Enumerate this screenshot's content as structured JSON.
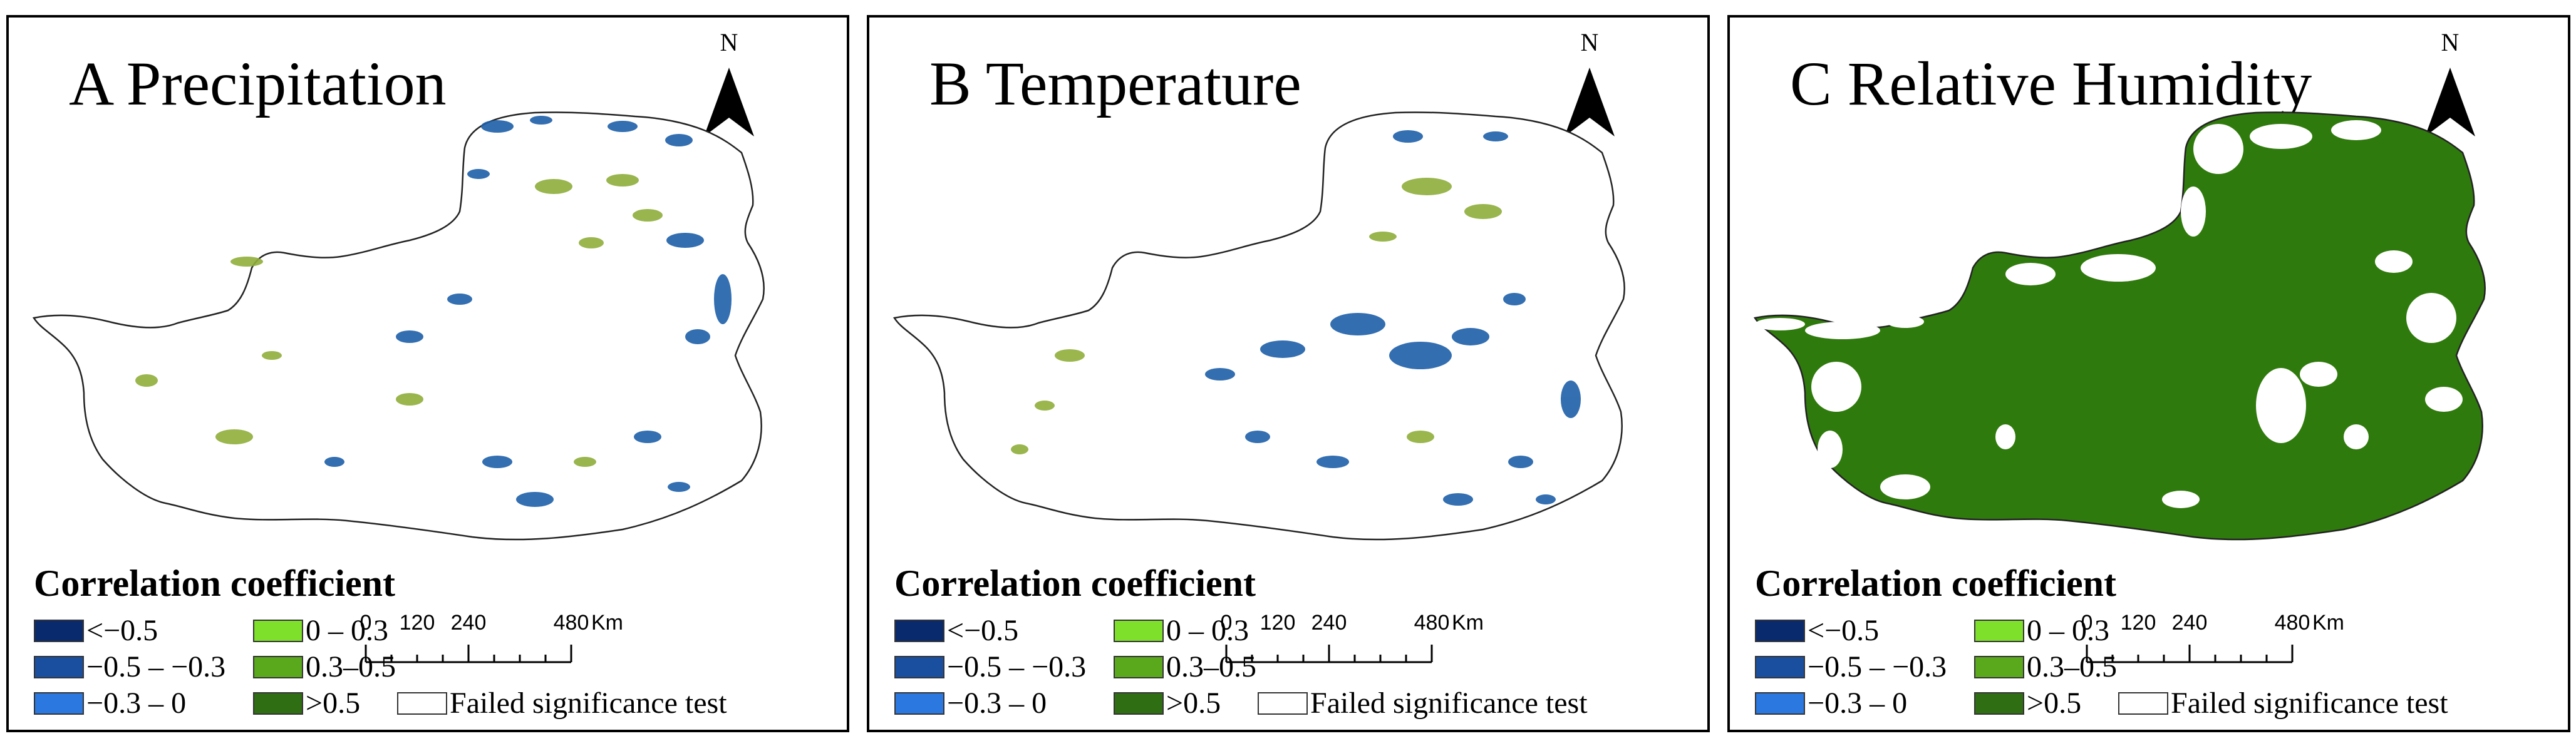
{
  "panels": [
    {
      "title": "A Precipitation",
      "north_label": "N",
      "layer": "Correlation coefficient with precipitation (mostly failed significance test; scattered weak blue/green patches)",
      "dominant_class": "failed"
    },
    {
      "title": "B Temperature",
      "north_label": "N",
      "layer": "Correlation coefficient with temperature (mostly failed significance test; scattered blue patches)",
      "dominant_class": "failed"
    },
    {
      "title": "C Relative Humidity",
      "north_label": "N",
      "layer": "Correlation coefficient with relative humidity (large areas >0.5)",
      "dominant_class": "gt05"
    }
  ],
  "legend": {
    "title": "Correlation coefficient",
    "items": [
      {
        "key": "lt_neg05",
        "label": "<−0.5",
        "color": "#0a2a6e"
      },
      {
        "key": "neg05_neg03",
        "label": "−0.5 – −0.3",
        "color": "#1a4fa0"
      },
      {
        "key": "neg03_0",
        "label": "−0.3 – 0",
        "color": "#2a78e0"
      },
      {
        "key": "0_03",
        "label": "0 – 0.3",
        "color": "#7ee02a"
      },
      {
        "key": "03_05",
        "label": "0.3–0.5",
        "color": "#5aa81c"
      },
      {
        "key": "gt05",
        "label": ">0.5",
        "color": "#2f6e12"
      },
      {
        "key": "failed",
        "label": "Failed significance test",
        "color": "#ffffff"
      }
    ]
  },
  "scalebar": {
    "ticks": [
      "0",
      "120",
      "240",
      "480"
    ],
    "tick_values": [
      0,
      120,
      240,
      480
    ],
    "unit": "Km"
  },
  "colors": {
    "frame": "#000000",
    "humidity_fill": "#2f7a0c",
    "weak_blue": "#1d5fa8",
    "weak_green": "#8fae3a"
  }
}
